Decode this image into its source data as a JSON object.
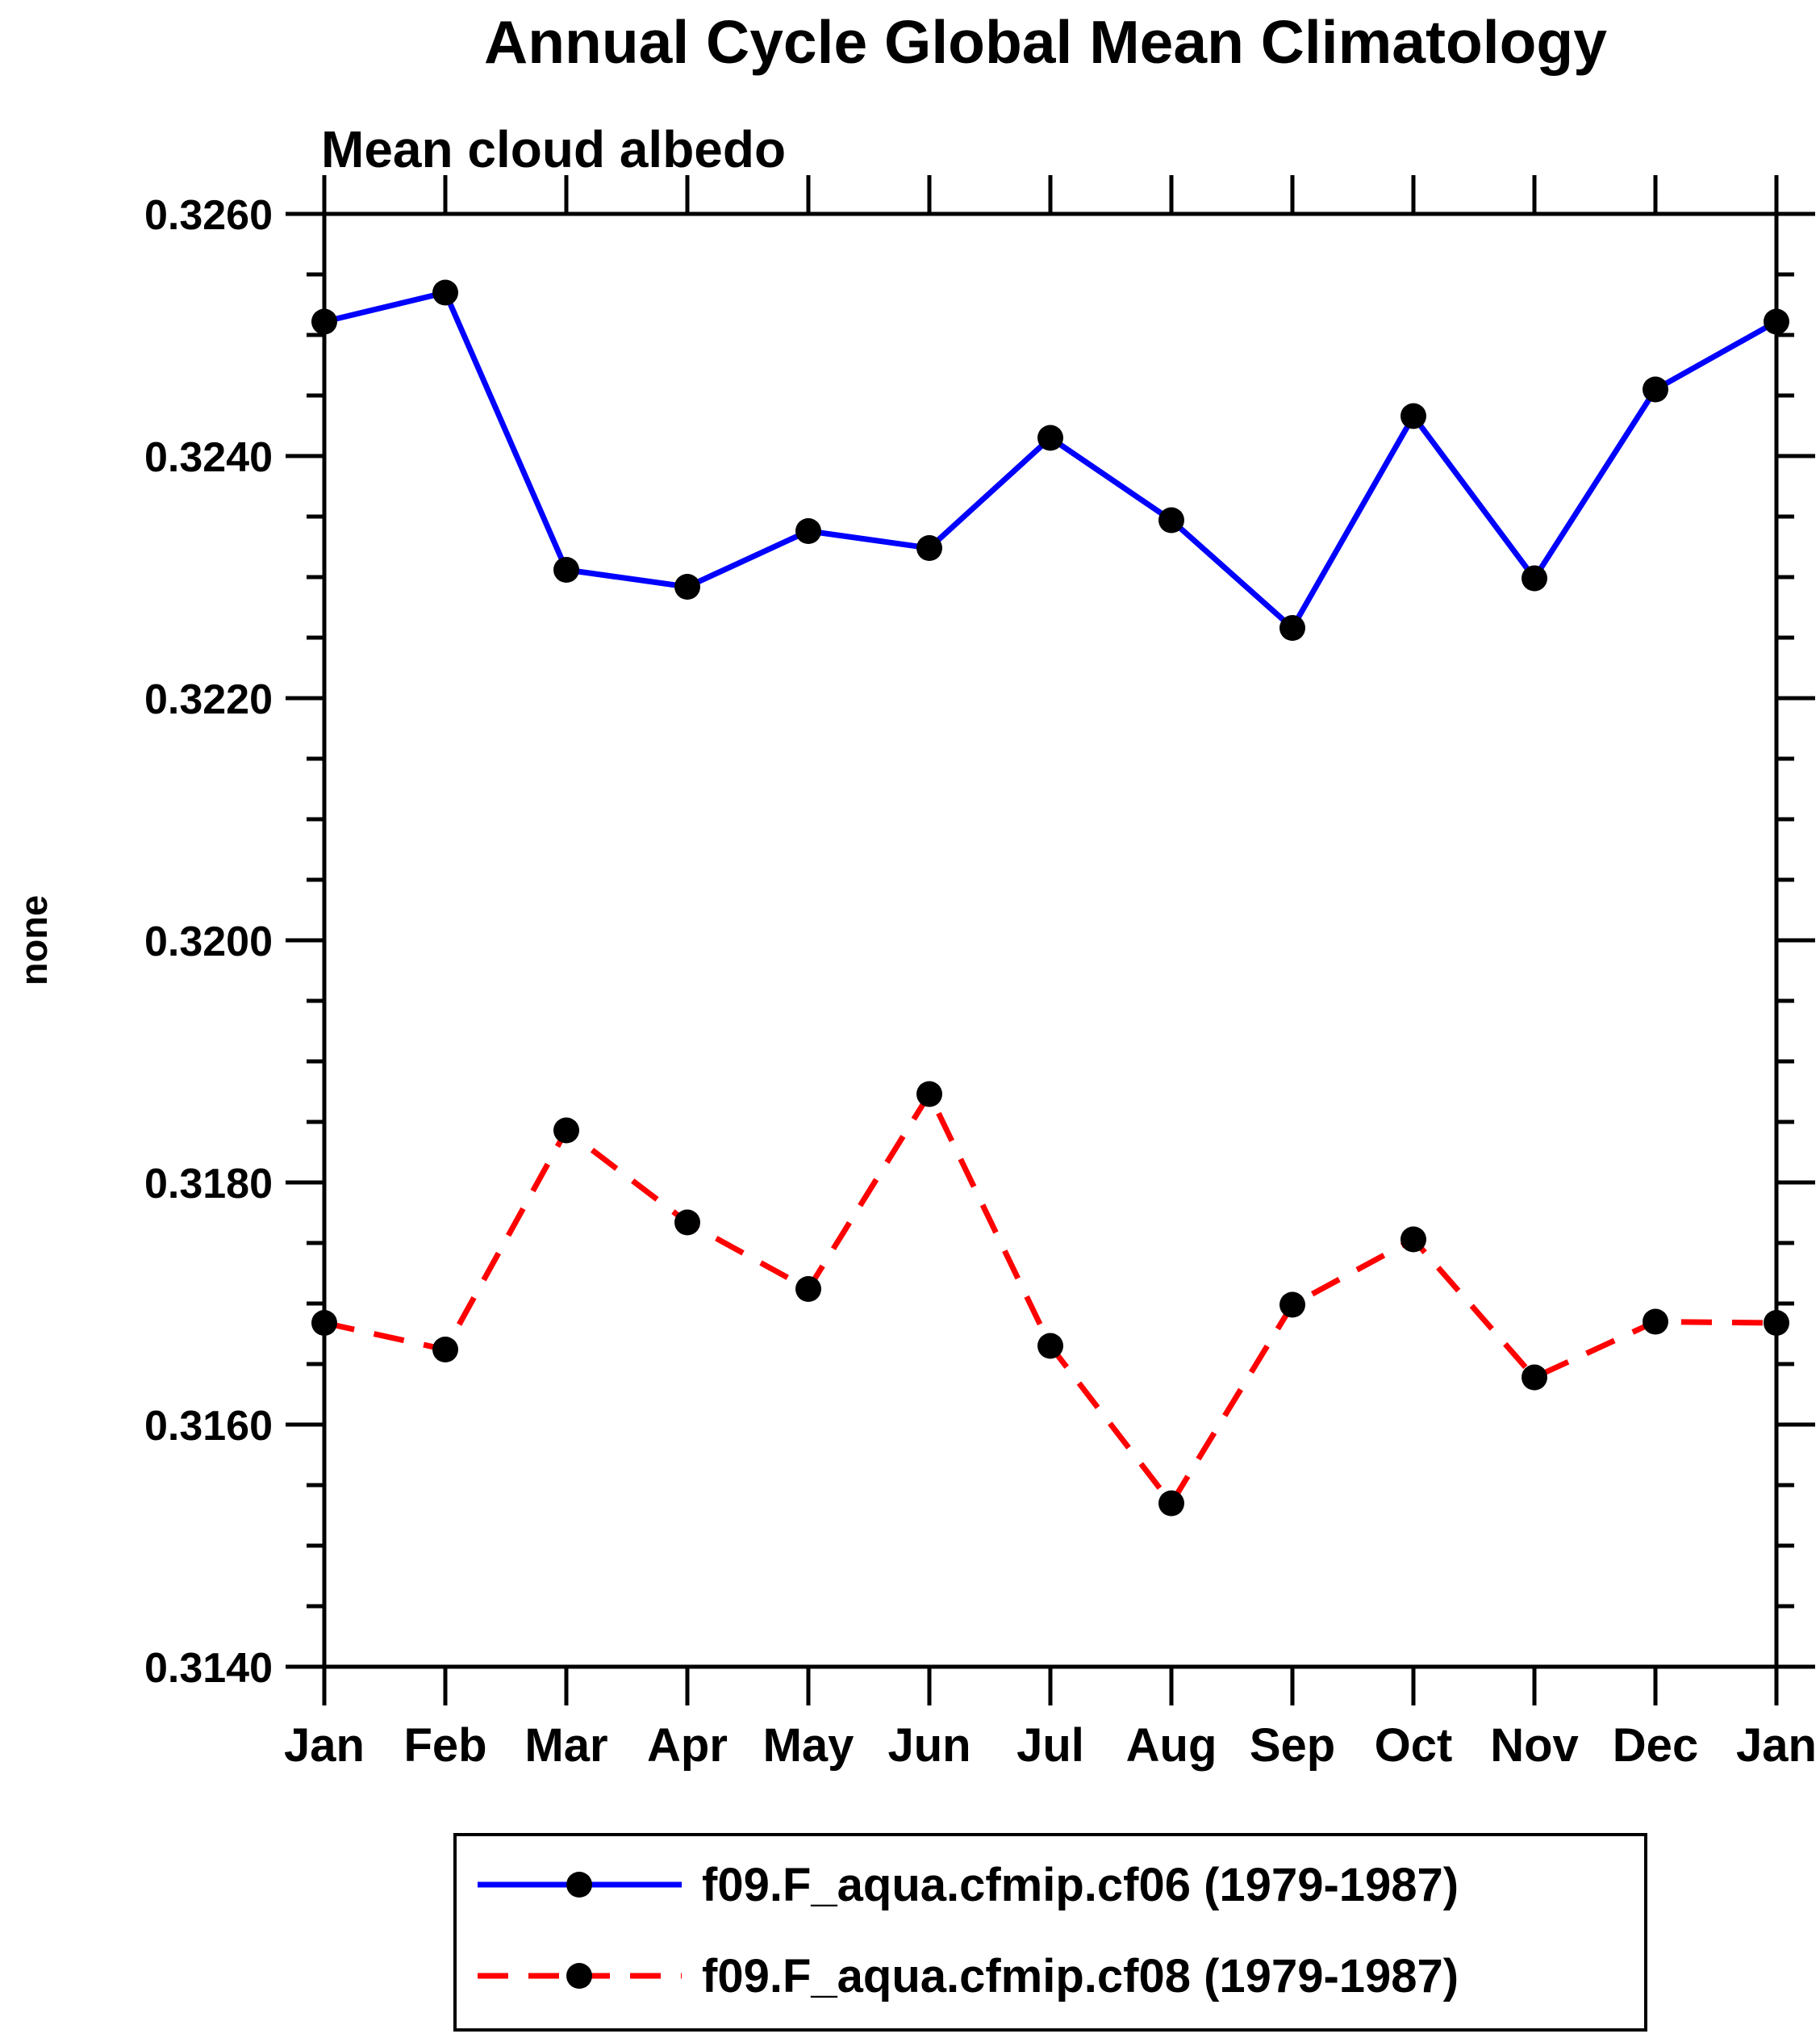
{
  "page": {
    "background": "#ffffff",
    "frame_color": "#000000",
    "text_color": "#000000"
  },
  "chart_data": {
    "type": "line",
    "title": "Annual Cycle Global Mean Climatology",
    "subtitle": "Mean cloud albedo",
    "xlabel": "",
    "ylabel": "none",
    "categories": [
      "Jan",
      "Feb",
      "Mar",
      "Apr",
      "May",
      "Jun",
      "Jul",
      "Aug",
      "Sep",
      "Oct",
      "Nov",
      "Dec",
      "Jan"
    ],
    "series": [
      {
        "name": "f09.F_aqua.cfmip.cf06 (1979-1987)",
        "color": "#0000ff",
        "line_style": "solid",
        "marker": "filled-circle",
        "marker_color": "#000000",
        "values": [
          0.32511,
          0.32535,
          0.32306,
          0.32292,
          0.32338,
          0.32324,
          0.32415,
          0.32347,
          0.32258,
          0.32433,
          0.32299,
          0.32455,
          0.32511
        ]
      },
      {
        "name": "f09.F_aqua.cfmip.cf08 (1979-1987)",
        "color": "#ff0000",
        "line_style": "dashed",
        "marker": "filled-circle",
        "marker_color": "#000000",
        "values": [
          0.31684,
          0.31662,
          0.31843,
          0.31767,
          0.31712,
          0.31873,
          0.31665,
          0.31535,
          0.31699,
          0.31753,
          0.31639,
          0.31685,
          0.31684
        ]
      }
    ],
    "ylim": [
      0.314,
      0.326
    ],
    "ytick_major_step": 0.002,
    "ytick_minor_step": 0.0005,
    "ytick_labels": [
      "0.3140",
      "0.3160",
      "0.3180",
      "0.3200",
      "0.3220",
      "0.3240",
      "0.3260"
    ],
    "grid": false,
    "legend_position": "bottom"
  }
}
